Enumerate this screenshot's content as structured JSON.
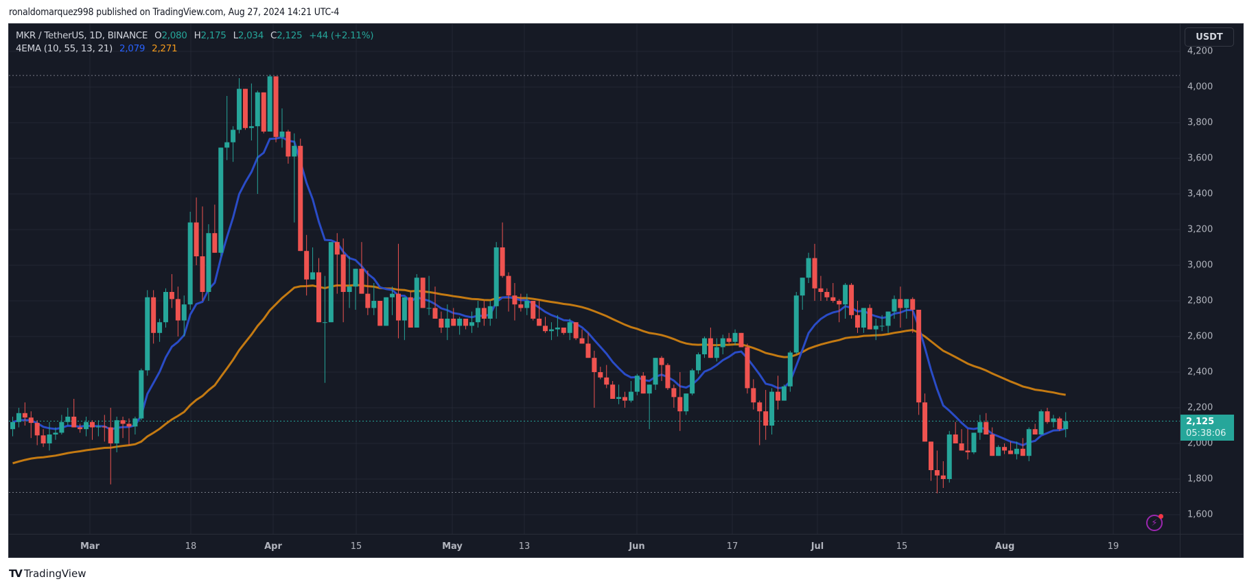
{
  "header": {
    "published_text": "ronaldomarquez998 published on TradingView.com, Aug 27, 2024 14:21 UTC-4"
  },
  "legend": {
    "symbol": "MKR / TetherUS, 1D, BINANCE",
    "open_label": "O",
    "open": "2,080",
    "high_label": "H",
    "high": "2,175",
    "low_label": "L",
    "low": "2,034",
    "close_label": "C",
    "close": "2,125",
    "change": "+44 (+2.11%)",
    "indicator": "4EMA (10, 55, 13, 21)",
    "ema_fast": "2,079",
    "ema_slow": "2,271"
  },
  "price_scale": {
    "unit_button": "USDT",
    "ticks": [
      "4,200",
      "4,000",
      "3,800",
      "3,600",
      "3,400",
      "3,200",
      "3,000",
      "2,800",
      "2,600",
      "2,400",
      "2,200",
      "2,000",
      "1,800",
      "1,600"
    ],
    "last_price": "2,125",
    "countdown": "05:38:06"
  },
  "time_scale": {
    "ticks": [
      {
        "label": "Mar",
        "month": true
      },
      {
        "label": "18",
        "month": false
      },
      {
        "label": "Apr",
        "month": true
      },
      {
        "label": "15",
        "month": false
      },
      {
        "label": "May",
        "month": true
      },
      {
        "label": "13",
        "month": false
      },
      {
        "label": "Jun",
        "month": true
      },
      {
        "label": "17",
        "month": false
      },
      {
        "label": "Jul",
        "month": true
      },
      {
        "label": "15",
        "month": false
      },
      {
        "label": "Aug",
        "month": true
      },
      {
        "label": "19",
        "month": false
      }
    ]
  },
  "footer": {
    "brand": "TradingView"
  },
  "colors": {
    "up": "#26a69a",
    "down": "#ef5350",
    "ema_fast": "#2a4cc7",
    "ema_slow": "#c47a12",
    "background": "#161a25",
    "grid": "#232733"
  },
  "chart_data": {
    "type": "candlestick",
    "title": "MKR / TetherUS, 1D, BINANCE",
    "xlabel": "",
    "ylabel": "USDT",
    "ylim": [
      1530,
      4300
    ],
    "grid": true,
    "x_range": [
      "2024-02-17",
      "2024-08-27"
    ],
    "x_ticks": [
      "Mar",
      "18",
      "Apr",
      "15",
      "May",
      "13",
      "Jun",
      "17",
      "Jul",
      "15",
      "Aug",
      "19"
    ],
    "y_ticks": [
      1600,
      1800,
      2000,
      2200,
      2400,
      2600,
      2800,
      3000,
      3200,
      3400,
      3600,
      3800,
      4000,
      4200
    ],
    "last": {
      "open": 2080,
      "high": 2175,
      "low": 2034,
      "close": 2125,
      "change": 44,
      "change_pct": 2.11
    },
    "max_high_marker": 4065,
    "min_low_marker": 1725,
    "series": [
      {
        "name": "EMA 10",
        "value_last": 2079
      },
      {
        "name": "EMA 55",
        "value_last": 2271
      }
    ],
    "ohlc_note": "Approximate daily OHLC values read from the chart, starting Feb 17, 2024",
    "ohlc": [
      [
        2080,
        2150,
        2040,
        2120
      ],
      [
        2120,
        2200,
        2090,
        2170
      ],
      [
        2170,
        2230,
        2100,
        2145
      ],
      [
        2145,
        2180,
        2030,
        2115
      ],
      [
        2115,
        2130,
        1990,
        2045
      ],
      [
        2045,
        2080,
        1980,
        2000
      ],
      [
        2000,
        2120,
        1960,
        2050
      ],
      [
        2050,
        2090,
        2020,
        2060
      ],
      [
        2060,
        2160,
        2050,
        2120
      ],
      [
        2120,
        2200,
        2100,
        2150
      ],
      [
        2150,
        2250,
        2100,
        2090
      ],
      [
        2090,
        2110,
        2060,
        2080
      ],
      [
        2080,
        2150,
        2040,
        2120
      ],
      [
        2120,
        2130,
        2020,
        2090
      ],
      [
        2090,
        2130,
        2040,
        2095
      ],
      [
        2095,
        2160,
        2010,
        2090
      ],
      [
        2090,
        2200,
        1770,
        2000
      ],
      [
        2000,
        2150,
        1950,
        2130
      ],
      [
        2130,
        2150,
        2030,
        2110
      ],
      [
        2110,
        2140,
        1990,
        2095
      ],
      [
        2095,
        2150,
        2050,
        2140
      ],
      [
        2140,
        2420,
        2130,
        2410
      ],
      [
        2410,
        2860,
        2380,
        2820
      ],
      [
        2820,
        2860,
        2560,
        2620
      ],
      [
        2620,
        2700,
        2570,
        2680
      ],
      [
        2680,
        2870,
        2650,
        2850
      ],
      [
        2850,
        2950,
        2760,
        2810
      ],
      [
        2810,
        2880,
        2600,
        2690
      ],
      [
        2690,
        2830,
        2600,
        2780
      ],
      [
        2780,
        3300,
        2750,
        3240
      ],
      [
        3240,
        3380,
        3000,
        3050
      ],
      [
        3050,
        3330,
        2800,
        2850
      ],
      [
        2850,
        3230,
        2800,
        3180
      ],
      [
        3180,
        3340,
        3070,
        3070
      ],
      [
        3070,
        3660,
        3050,
        3660
      ],
      [
        3660,
        3950,
        3590,
        3690
      ],
      [
        3690,
        3780,
        3580,
        3760
      ],
      [
        3760,
        4050,
        3740,
        3990
      ],
      [
        3990,
        3980,
        3760,
        3770
      ],
      [
        3770,
        4020,
        3700,
        3780
      ],
      [
        3780,
        3980,
        3400,
        3970
      ],
      [
        3970,
        3870,
        3740,
        3750
      ],
      [
        3750,
        4070,
        3760,
        4060
      ],
      [
        4060,
        4020,
        3690,
        3720
      ],
      [
        3720,
        3880,
        3660,
        3750
      ],
      [
        3750,
        3760,
        3570,
        3610
      ],
      [
        3610,
        3740,
        3240,
        3670
      ],
      [
        3670,
        3710,
        3080,
        3080
      ],
      [
        3080,
        3170,
        2830,
        2920
      ],
      [
        2920,
        3100,
        2960,
        2960
      ],
      [
        2960,
        3040,
        2760,
        2680
      ],
      [
        2680,
        2940,
        2340,
        2680
      ],
      [
        2680,
        2690,
        2990,
        3130
      ],
      [
        3130,
        3180,
        2840,
        3060
      ],
      [
        3060,
        3150,
        2680,
        2850
      ],
      [
        2850,
        3050,
        2760,
        2880
      ],
      [
        2880,
        2980,
        2750,
        2980
      ],
      [
        2980,
        3130,
        2880,
        2840
      ],
      [
        2840,
        2970,
        2720,
        2760
      ],
      [
        2760,
        2900,
        2720,
        2800
      ],
      [
        2800,
        2800,
        2780,
        2660
      ],
      [
        2660,
        2810,
        2710,
        2820
      ],
      [
        2820,
        2880,
        2720,
        2840
      ],
      [
        2840,
        3120,
        2590,
        2690
      ],
      [
        2690,
        2820,
        2580,
        2820
      ],
      [
        2820,
        2850,
        2690,
        2650
      ],
      [
        2650,
        2950,
        2660,
        2930
      ],
      [
        2930,
        2930,
        2880,
        2760
      ],
      [
        2760,
        2940,
        2720,
        2760
      ],
      [
        2760,
        2880,
        2720,
        2700
      ],
      [
        2700,
        2740,
        2620,
        2650
      ],
      [
        2650,
        2780,
        2580,
        2700
      ],
      [
        2700,
        2760,
        2660,
        2660
      ],
      [
        2660,
        2710,
        2610,
        2700
      ],
      [
        2700,
        2680,
        2640,
        2660
      ],
      [
        2660,
        2740,
        2620,
        2680
      ],
      [
        2680,
        2800,
        2650,
        2760
      ],
      [
        2760,
        2800,
        2660,
        2700
      ],
      [
        2700,
        2800,
        2660,
        2770
      ],
      [
        2770,
        3130,
        2700,
        3100
      ],
      [
        3100,
        3240,
        2930,
        2940
      ],
      [
        2940,
        2960,
        2740,
        2830
      ],
      [
        2830,
        2900,
        2690,
        2780
      ],
      [
        2780,
        2840,
        2740,
        2760
      ],
      [
        2760,
        2840,
        2720,
        2800
      ],
      [
        2800,
        2790,
        2690,
        2700
      ],
      [
        2700,
        2800,
        2680,
        2660
      ],
      [
        2660,
        2710,
        2620,
        2630
      ],
      [
        2630,
        2680,
        2580,
        2640
      ],
      [
        2640,
        2720,
        2600,
        2650
      ],
      [
        2650,
        2640,
        2610,
        2620
      ],
      [
        2620,
        2700,
        2580,
        2680
      ],
      [
        2680,
        2660,
        2580,
        2590
      ],
      [
        2590,
        2640,
        2560,
        2560
      ],
      [
        2560,
        2620,
        2480,
        2480
      ],
      [
        2480,
        2520,
        2200,
        2400
      ],
      [
        2400,
        2430,
        2360,
        2370
      ],
      [
        2370,
        2440,
        2310,
        2330
      ],
      [
        2330,
        2350,
        2260,
        2250
      ],
      [
        2250,
        2330,
        2220,
        2260
      ],
      [
        2260,
        2290,
        2200,
        2240
      ],
      [
        2240,
        2350,
        2230,
        2290
      ],
      [
        2290,
        2390,
        2270,
        2380
      ],
      [
        2380,
        2400,
        2280,
        2280
      ],
      [
        2280,
        2320,
        2080,
        2330
      ],
      [
        2330,
        2480,
        2300,
        2480
      ],
      [
        2480,
        2490,
        2350,
        2440
      ],
      [
        2440,
        2450,
        2300,
        2310
      ],
      [
        2310,
        2330,
        2200,
        2260
      ],
      [
        2260,
        2400,
        2070,
        2180
      ],
      [
        2180,
        2260,
        2160,
        2280
      ],
      [
        2280,
        2420,
        2270,
        2410
      ],
      [
        2410,
        2510,
        2390,
        2500
      ],
      [
        2500,
        2600,
        2480,
        2590
      ],
      [
        2590,
        2650,
        2480,
        2480
      ],
      [
        2480,
        2590,
        2460,
        2540
      ],
      [
        2540,
        2610,
        2500,
        2590
      ],
      [
        2590,
        2620,
        2560,
        2570
      ],
      [
        2570,
        2640,
        2550,
        2620
      ],
      [
        2620,
        2620,
        2550,
        2540
      ],
      [
        2540,
        2560,
        2280,
        2310
      ],
      [
        2310,
        2360,
        2190,
        2230
      ],
      [
        2230,
        2240,
        1990,
        2180
      ],
      [
        2180,
        2300,
        2020,
        2100
      ],
      [
        2100,
        2310,
        2050,
        2290
      ],
      [
        2290,
        2380,
        2190,
        2240
      ],
      [
        2240,
        2330,
        2250,
        2320
      ],
      [
        2320,
        2520,
        2290,
        2510
      ],
      [
        2510,
        2850,
        2500,
        2830
      ],
      [
        2830,
        2870,
        2750,
        2930
      ],
      [
        2930,
        3070,
        2900,
        3040
      ],
      [
        3040,
        3120,
        2800,
        2870
      ],
      [
        2870,
        2940,
        2800,
        2850
      ],
      [
        2850,
        2870,
        2800,
        2820
      ],
      [
        2820,
        2900,
        2790,
        2800
      ],
      [
        2800,
        2810,
        2680,
        2780
      ],
      [
        2780,
        2900,
        2700,
        2890
      ],
      [
        2890,
        2900,
        2700,
        2720
      ],
      [
        2720,
        2800,
        2620,
        2650
      ],
      [
        2650,
        2760,
        2620,
        2760
      ],
      [
        2760,
        2780,
        2650,
        2640
      ],
      [
        2640,
        2700,
        2580,
        2660
      ],
      [
        2660,
        2720,
        2630,
        2660
      ],
      [
        2660,
        2740,
        2620,
        2740
      ],
      [
        2740,
        2830,
        2700,
        2810
      ],
      [
        2810,
        2880,
        2650,
        2760
      ],
      [
        2760,
        2800,
        2700,
        2810
      ],
      [
        2810,
        2820,
        2620,
        2750
      ],
      [
        2750,
        2750,
        2160,
        2230
      ],
      [
        2230,
        2280,
        2010,
        2010
      ],
      [
        2010,
        2010,
        1790,
        1850
      ],
      [
        1850,
        1960,
        1720,
        1820
      ],
      [
        1820,
        1900,
        1750,
        1800
      ],
      [
        1800,
        2070,
        1780,
        2050
      ],
      [
        2050,
        2120,
        2010,
        2000
      ],
      [
        2000,
        2080,
        1960,
        1960
      ],
      [
        1960,
        2080,
        1910,
        1950
      ],
      [
        1950,
        2030,
        1940,
        2060
      ],
      [
        2060,
        2160,
        2020,
        2120
      ],
      [
        2120,
        2170,
        2060,
        2050
      ],
      [
        2050,
        2090,
        1930,
        1930
      ],
      [
        1930,
        1990,
        1950,
        1980
      ],
      [
        1980,
        2000,
        1940,
        1960
      ],
      [
        1960,
        2010,
        1940,
        1940
      ],
      [
        1940,
        2010,
        1910,
        1970
      ],
      [
        1970,
        2030,
        1930,
        1930
      ],
      [
        1930,
        2090,
        1900,
        2080
      ],
      [
        2080,
        2110,
        2060,
        2050
      ],
      [
        2050,
        2190,
        2060,
        2180
      ],
      [
        2180,
        2200,
        2110,
        2120
      ],
      [
        2120,
        2160,
        2090,
        2140
      ],
      [
        2140,
        2150,
        2070,
        2080
      ],
      [
        2080,
        2175,
        2034,
        2125
      ]
    ]
  }
}
